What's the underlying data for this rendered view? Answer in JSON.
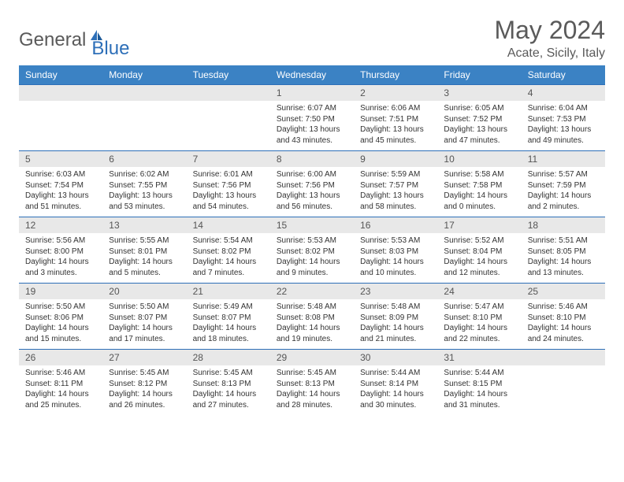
{
  "logo": {
    "text1": "General",
    "text2": "Blue"
  },
  "title": "May 2024",
  "location": "Acate, Sicily, Italy",
  "colors": {
    "header_bg": "#3b82c4",
    "header_text": "#ffffff",
    "border": "#2d6fb8",
    "day_num_bg": "#e8e8e8",
    "day_num_text": "#555555",
    "body_text": "#333333",
    "title_text": "#5a5a5a"
  },
  "weekdays": [
    "Sunday",
    "Monday",
    "Tuesday",
    "Wednesday",
    "Thursday",
    "Friday",
    "Saturday"
  ],
  "weeks": [
    [
      null,
      null,
      null,
      {
        "n": "1",
        "l1": "Sunrise: 6:07 AM",
        "l2": "Sunset: 7:50 PM",
        "l3": "Daylight: 13 hours",
        "l4": "and 43 minutes."
      },
      {
        "n": "2",
        "l1": "Sunrise: 6:06 AM",
        "l2": "Sunset: 7:51 PM",
        "l3": "Daylight: 13 hours",
        "l4": "and 45 minutes."
      },
      {
        "n": "3",
        "l1": "Sunrise: 6:05 AM",
        "l2": "Sunset: 7:52 PM",
        "l3": "Daylight: 13 hours",
        "l4": "and 47 minutes."
      },
      {
        "n": "4",
        "l1": "Sunrise: 6:04 AM",
        "l2": "Sunset: 7:53 PM",
        "l3": "Daylight: 13 hours",
        "l4": "and 49 minutes."
      }
    ],
    [
      {
        "n": "5",
        "l1": "Sunrise: 6:03 AM",
        "l2": "Sunset: 7:54 PM",
        "l3": "Daylight: 13 hours",
        "l4": "and 51 minutes."
      },
      {
        "n": "6",
        "l1": "Sunrise: 6:02 AM",
        "l2": "Sunset: 7:55 PM",
        "l3": "Daylight: 13 hours",
        "l4": "and 53 minutes."
      },
      {
        "n": "7",
        "l1": "Sunrise: 6:01 AM",
        "l2": "Sunset: 7:56 PM",
        "l3": "Daylight: 13 hours",
        "l4": "and 54 minutes."
      },
      {
        "n": "8",
        "l1": "Sunrise: 6:00 AM",
        "l2": "Sunset: 7:56 PM",
        "l3": "Daylight: 13 hours",
        "l4": "and 56 minutes."
      },
      {
        "n": "9",
        "l1": "Sunrise: 5:59 AM",
        "l2": "Sunset: 7:57 PM",
        "l3": "Daylight: 13 hours",
        "l4": "and 58 minutes."
      },
      {
        "n": "10",
        "l1": "Sunrise: 5:58 AM",
        "l2": "Sunset: 7:58 PM",
        "l3": "Daylight: 14 hours",
        "l4": "and 0 minutes."
      },
      {
        "n": "11",
        "l1": "Sunrise: 5:57 AM",
        "l2": "Sunset: 7:59 PM",
        "l3": "Daylight: 14 hours",
        "l4": "and 2 minutes."
      }
    ],
    [
      {
        "n": "12",
        "l1": "Sunrise: 5:56 AM",
        "l2": "Sunset: 8:00 PM",
        "l3": "Daylight: 14 hours",
        "l4": "and 3 minutes."
      },
      {
        "n": "13",
        "l1": "Sunrise: 5:55 AM",
        "l2": "Sunset: 8:01 PM",
        "l3": "Daylight: 14 hours",
        "l4": "and 5 minutes."
      },
      {
        "n": "14",
        "l1": "Sunrise: 5:54 AM",
        "l2": "Sunset: 8:02 PM",
        "l3": "Daylight: 14 hours",
        "l4": "and 7 minutes."
      },
      {
        "n": "15",
        "l1": "Sunrise: 5:53 AM",
        "l2": "Sunset: 8:02 PM",
        "l3": "Daylight: 14 hours",
        "l4": "and 9 minutes."
      },
      {
        "n": "16",
        "l1": "Sunrise: 5:53 AM",
        "l2": "Sunset: 8:03 PM",
        "l3": "Daylight: 14 hours",
        "l4": "and 10 minutes."
      },
      {
        "n": "17",
        "l1": "Sunrise: 5:52 AM",
        "l2": "Sunset: 8:04 PM",
        "l3": "Daylight: 14 hours",
        "l4": "and 12 minutes."
      },
      {
        "n": "18",
        "l1": "Sunrise: 5:51 AM",
        "l2": "Sunset: 8:05 PM",
        "l3": "Daylight: 14 hours",
        "l4": "and 13 minutes."
      }
    ],
    [
      {
        "n": "19",
        "l1": "Sunrise: 5:50 AM",
        "l2": "Sunset: 8:06 PM",
        "l3": "Daylight: 14 hours",
        "l4": "and 15 minutes."
      },
      {
        "n": "20",
        "l1": "Sunrise: 5:50 AM",
        "l2": "Sunset: 8:07 PM",
        "l3": "Daylight: 14 hours",
        "l4": "and 17 minutes."
      },
      {
        "n": "21",
        "l1": "Sunrise: 5:49 AM",
        "l2": "Sunset: 8:07 PM",
        "l3": "Daylight: 14 hours",
        "l4": "and 18 minutes."
      },
      {
        "n": "22",
        "l1": "Sunrise: 5:48 AM",
        "l2": "Sunset: 8:08 PM",
        "l3": "Daylight: 14 hours",
        "l4": "and 19 minutes."
      },
      {
        "n": "23",
        "l1": "Sunrise: 5:48 AM",
        "l2": "Sunset: 8:09 PM",
        "l3": "Daylight: 14 hours",
        "l4": "and 21 minutes."
      },
      {
        "n": "24",
        "l1": "Sunrise: 5:47 AM",
        "l2": "Sunset: 8:10 PM",
        "l3": "Daylight: 14 hours",
        "l4": "and 22 minutes."
      },
      {
        "n": "25",
        "l1": "Sunrise: 5:46 AM",
        "l2": "Sunset: 8:10 PM",
        "l3": "Daylight: 14 hours",
        "l4": "and 24 minutes."
      }
    ],
    [
      {
        "n": "26",
        "l1": "Sunrise: 5:46 AM",
        "l2": "Sunset: 8:11 PM",
        "l3": "Daylight: 14 hours",
        "l4": "and 25 minutes."
      },
      {
        "n": "27",
        "l1": "Sunrise: 5:45 AM",
        "l2": "Sunset: 8:12 PM",
        "l3": "Daylight: 14 hours",
        "l4": "and 26 minutes."
      },
      {
        "n": "28",
        "l1": "Sunrise: 5:45 AM",
        "l2": "Sunset: 8:13 PM",
        "l3": "Daylight: 14 hours",
        "l4": "and 27 minutes."
      },
      {
        "n": "29",
        "l1": "Sunrise: 5:45 AM",
        "l2": "Sunset: 8:13 PM",
        "l3": "Daylight: 14 hours",
        "l4": "and 28 minutes."
      },
      {
        "n": "30",
        "l1": "Sunrise: 5:44 AM",
        "l2": "Sunset: 8:14 PM",
        "l3": "Daylight: 14 hours",
        "l4": "and 30 minutes."
      },
      {
        "n": "31",
        "l1": "Sunrise: 5:44 AM",
        "l2": "Sunset: 8:15 PM",
        "l3": "Daylight: 14 hours",
        "l4": "and 31 minutes."
      },
      null
    ]
  ]
}
